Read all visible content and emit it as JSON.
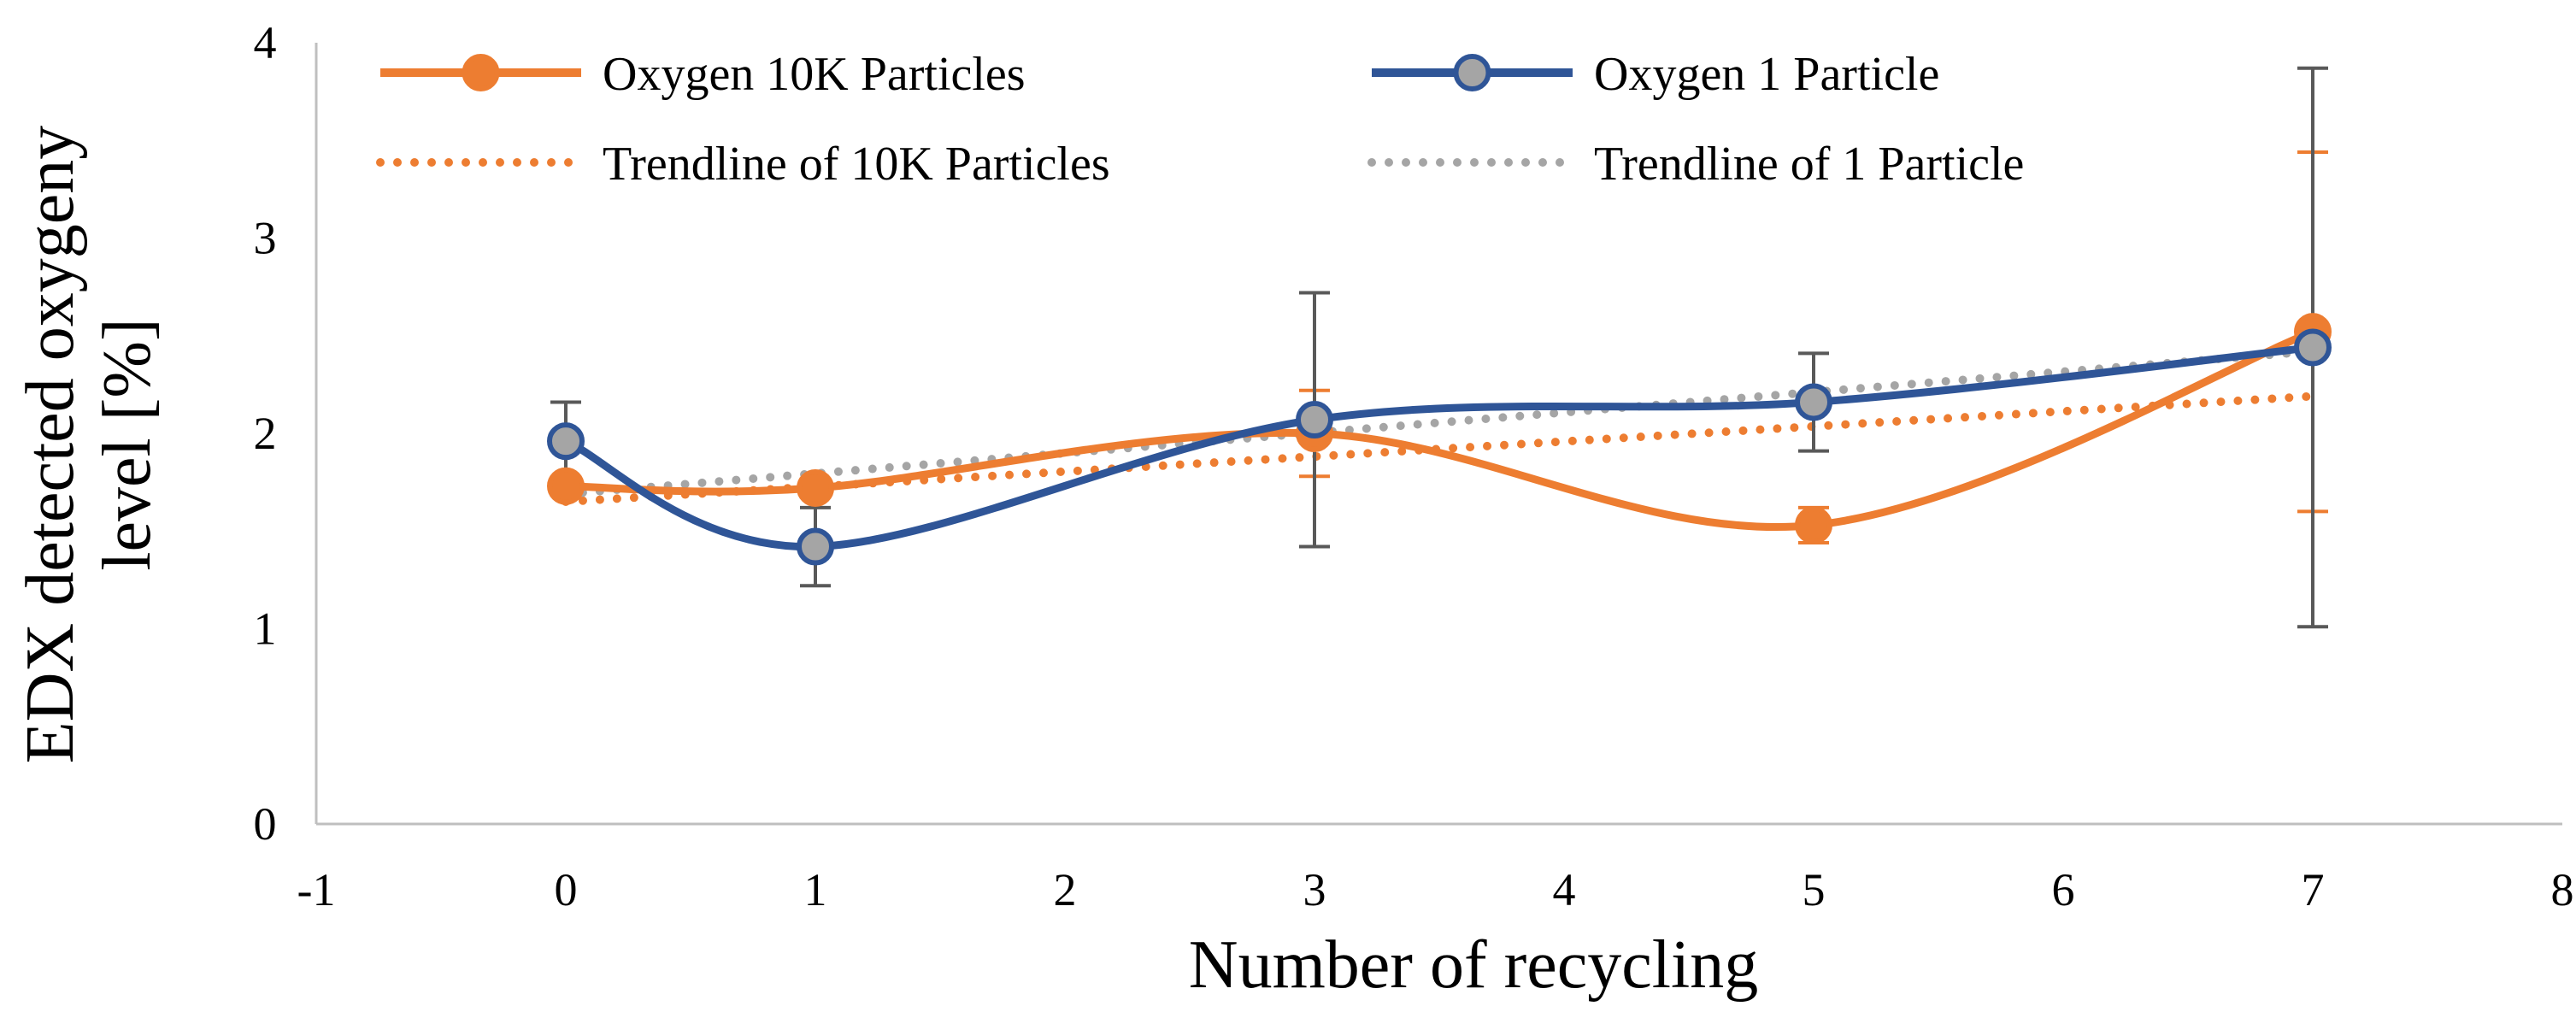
{
  "chart_data": {
    "type": "line",
    "title": "",
    "xlabel": "Number of recycling",
    "ylabel_lines": [
      "EDX detected oxygeny",
      "level [%]"
    ],
    "xlim": [
      -1,
      8
    ],
    "ylim": [
      0,
      4
    ],
    "x_ticks": [
      "-1",
      "0",
      "1",
      "2",
      "3",
      "4",
      "5",
      "6",
      "7",
      "8"
    ],
    "y_ticks": [
      "0",
      "1",
      "2",
      "3",
      "4"
    ],
    "grid": false,
    "legend_placement": "top",
    "series": [
      {
        "name": "Oxygen 10K Particles",
        "color": "#ED7D31",
        "marker": "circle-filled",
        "x": [
          0,
          1,
          3,
          5,
          7
        ],
        "y": [
          1.73,
          1.72,
          2.0,
          1.53,
          2.52
        ],
        "error": [
          0.02,
          0.03,
          0.22,
          0.09,
          0.92
        ]
      },
      {
        "name": "Oxygen 1 Particle",
        "color": "#2F5597",
        "marker_fill": "#A5A5A5",
        "marker": "circle-gray",
        "x": [
          0,
          1,
          3,
          5,
          7
        ],
        "y": [
          1.96,
          1.42,
          2.07,
          2.16,
          2.44
        ],
        "error": [
          0.2,
          0.2,
          0.65,
          0.25,
          1.43
        ]
      }
    ],
    "trendlines": [
      {
        "name": "Trendline of 10K Particles",
        "color": "#ED7D31",
        "style": "dotted",
        "x": [
          0,
          7
        ],
        "y": [
          1.65,
          2.19
        ]
      },
      {
        "name": "Trendline of 1 Particle",
        "color": "#A5A5A5",
        "style": "dotted",
        "x": [
          0,
          7
        ],
        "y": [
          1.69,
          2.42
        ]
      }
    ],
    "error_bar_color": "#595959"
  }
}
